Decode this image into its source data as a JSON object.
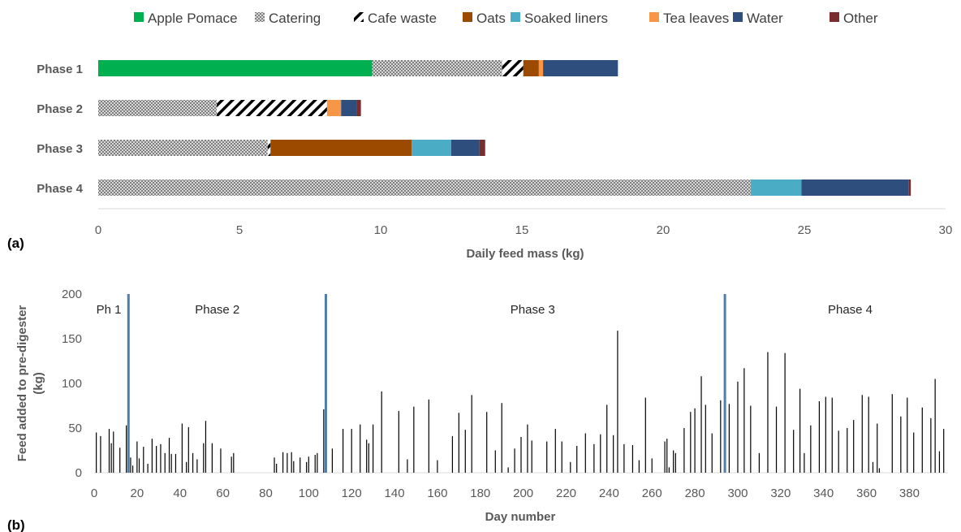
{
  "chart_data": [
    {
      "type": "bar",
      "orientation": "horizontal",
      "stacked": true,
      "panel_label": "(a)",
      "xlabel": "Daily feed mass  (kg)",
      "xlim": [
        0,
        30
      ],
      "xticks": [
        0,
        5,
        10,
        15,
        20,
        25,
        30
      ],
      "categories": [
        "Phase 1",
        "Phase 2",
        "Phase 3",
        "Phase 4"
      ],
      "legend_position": "top",
      "series": [
        {
          "name": "Apple Pomace",
          "color": "#00b050",
          "pattern": "solid",
          "values": [
            9.7,
            0,
            0,
            0
          ]
        },
        {
          "name": "Catering",
          "color": "#a6a6a6",
          "pattern": "dots",
          "values": [
            4.6,
            4.2,
            6.0,
            23.1
          ]
        },
        {
          "name": "Cafe waste",
          "color": "#000000",
          "pattern": "stripes",
          "values": [
            0.75,
            3.9,
            0.1,
            0
          ]
        },
        {
          "name": "Oats",
          "color": "#9c4a00",
          "pattern": "solid",
          "values": [
            0.55,
            0,
            5.0,
            0
          ]
        },
        {
          "name": "Soaked liners",
          "color": "#4bacc6",
          "pattern": "solid",
          "values": [
            0,
            0,
            1.4,
            1.8
          ]
        },
        {
          "name": "Tea leaves",
          "color": "#f79646",
          "pattern": "solid",
          "values": [
            0.15,
            0.5,
            0,
            0
          ]
        },
        {
          "name": "Water",
          "color": "#2e4e7e",
          "pattern": "solid",
          "values": [
            2.65,
            0.55,
            1.0,
            3.8
          ]
        },
        {
          "name": "Other",
          "color": "#7b2c2c",
          "pattern": "solid",
          "values": [
            0,
            0.15,
            0.2,
            0.07
          ]
        }
      ]
    },
    {
      "type": "bar",
      "panel_label": "(b)",
      "xlabel": "Day number",
      "ylabel": "Feed added to pre-digester (kg)",
      "ylabel_lines": [
        "Feed added to pre-digester",
        "(kg)"
      ],
      "xlim": [
        0,
        398
      ],
      "ylim": [
        0,
        200
      ],
      "xticks": [
        0,
        20,
        40,
        60,
        80,
        100,
        120,
        140,
        160,
        180,
        200,
        220,
        240,
        260,
        280,
        300,
        320,
        340,
        360,
        380
      ],
      "yticks": [
        0,
        50,
        100,
        150,
        200
      ],
      "bar_color": "#000000",
      "divider_color": "#4f7eab",
      "phase_boundaries": [
        16,
        108,
        294
      ],
      "phase_labels": [
        {
          "text": "Ph 1",
          "x": 1
        },
        {
          "text": "Phase 2",
          "x": 47
        },
        {
          "text": "Phase 3",
          "x": 194
        },
        {
          "text": "Phase 4",
          "x": 342
        }
      ],
      "x": [
        1,
        3,
        7,
        8,
        9,
        12,
        15,
        17,
        18,
        20,
        21,
        23,
        25,
        27,
        29,
        31,
        33,
        35,
        36,
        38,
        41,
        43,
        44,
        46,
        48,
        51,
        52,
        55,
        59,
        64,
        65,
        84,
        85,
        88,
        90,
        92,
        93,
        96,
        99,
        100,
        103,
        104,
        107,
        111,
        116,
        120,
        124,
        127,
        128,
        130,
        134,
        142,
        146,
        149,
        156,
        160,
        167,
        170,
        173,
        176,
        183,
        187,
        190,
        193,
        196,
        199,
        202,
        204,
        211,
        215,
        218,
        222,
        225,
        229,
        233,
        236,
        239,
        242,
        244,
        247,
        251,
        254,
        257,
        260,
        266,
        267,
        268,
        270,
        271,
        275,
        278,
        280,
        283,
        285,
        288,
        292,
        296,
        300,
        303,
        306,
        310,
        314,
        318,
        322,
        326,
        329,
        331,
        334,
        338,
        341,
        344,
        347,
        351,
        354,
        358,
        361,
        363,
        365,
        366,
        372,
        376,
        379,
        382,
        386,
        390,
        392,
        394,
        396
      ],
      "values": [
        45,
        41,
        49,
        33,
        46,
        28,
        53,
        17,
        8,
        35,
        16,
        29,
        10,
        38,
        30,
        32,
        22,
        39,
        21,
        21,
        55,
        12,
        51,
        22,
        15,
        33,
        58,
        33,
        27,
        18,
        22,
        17,
        10,
        23,
        22,
        23,
        13,
        17,
        12,
        18,
        20,
        22,
        71,
        27,
        49,
        49,
        54,
        37,
        33,
        54,
        91,
        69,
        15,
        74,
        82,
        14,
        41,
        67,
        48,
        87,
        68,
        25,
        78,
        6,
        27,
        40,
        54,
        36,
        35,
        49,
        35,
        12,
        30,
        44,
        32,
        43,
        76,
        42,
        159,
        32,
        31,
        14,
        84,
        16,
        35,
        38,
        6,
        25,
        22,
        50,
        68,
        72,
        108,
        76,
        44,
        81,
        77,
        102,
        117,
        75,
        22,
        135,
        74,
        134,
        48,
        94,
        22,
        53,
        80,
        85,
        84,
        47,
        50,
        59,
        87,
        85,
        12,
        55,
        5,
        88,
        63,
        84,
        45,
        73,
        61,
        105,
        24,
        49
      ]
    }
  ]
}
